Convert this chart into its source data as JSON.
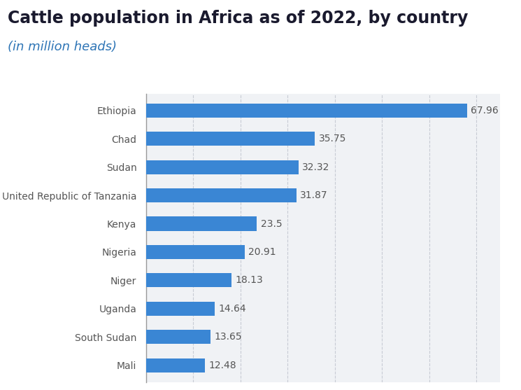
{
  "title": "Cattle population in Africa as of 2022, by country",
  "subtitle": "(in million heads)",
  "countries": [
    "Mali",
    "South Sudan",
    "Uganda",
    "Niger",
    "Nigeria",
    "Kenya",
    "United Republic of Tanzania",
    "Sudan",
    "Chad",
    "Ethiopia"
  ],
  "values": [
    12.48,
    13.65,
    14.64,
    18.13,
    20.91,
    23.5,
    31.87,
    32.32,
    35.75,
    67.96
  ],
  "bar_color": "#3a86d4",
  "title_color": "#1a1a2e",
  "subtitle_color": "#2e75b6",
  "label_color": "#555555",
  "value_color": "#555555",
  "bg_color": "#ffffff",
  "plot_bg_color": "#f0f2f5",
  "grid_color": "#c8ccd4",
  "box_border_color": "#d0d4db",
  "xlim": [
    0,
    75
  ],
  "bar_height": 0.5,
  "title_fontsize": 17,
  "subtitle_fontsize": 13,
  "label_fontsize": 10,
  "value_fontsize": 10,
  "grid_values": [
    10,
    20,
    30,
    40,
    50,
    60,
    70
  ]
}
